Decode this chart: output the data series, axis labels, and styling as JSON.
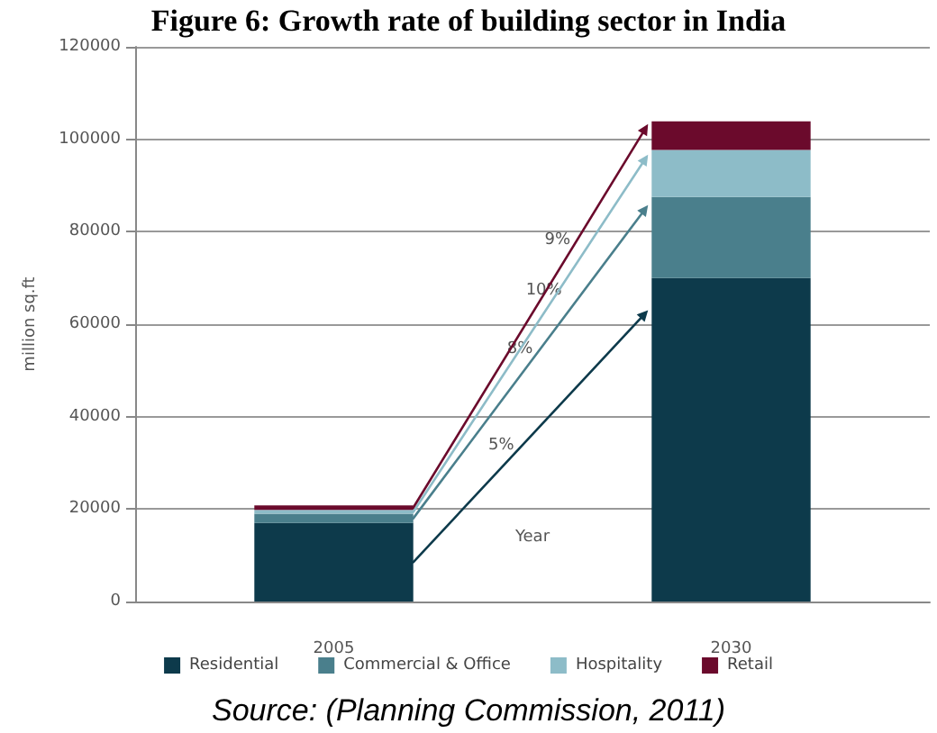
{
  "chart_data": {
    "type": "bar",
    "title": "Figure 6: Growth rate of building sector in India",
    "xlabel": "Year",
    "ylabel": "million sq.ft",
    "categories": [
      "2005",
      "2030"
    ],
    "stacked": true,
    "series": [
      {
        "name": "Residential",
        "color": "#0d3a4b",
        "values": [
          17000,
          70000
        ]
      },
      {
        "name": "Commercial & Office",
        "color": "#4a7f8c",
        "values": [
          2000,
          17500
        ]
      },
      {
        "name": "Hospitality",
        "color": "#8dbcc8",
        "values": [
          800,
          10200
        ]
      },
      {
        "name": "Retail",
        "color": "#6b0a2c",
        "values": [
          1000,
          6200
        ]
      }
    ],
    "ylim": [
      0,
      120000
    ],
    "yticks": [
      0,
      20000,
      40000,
      60000,
      80000,
      100000,
      120000
    ],
    "grid": "y",
    "legend": "bottom",
    "annotations": [
      "5%",
      "8%",
      "10%",
      "9%",
      "Source: (Planning Commission, 2011)"
    ]
  }
}
